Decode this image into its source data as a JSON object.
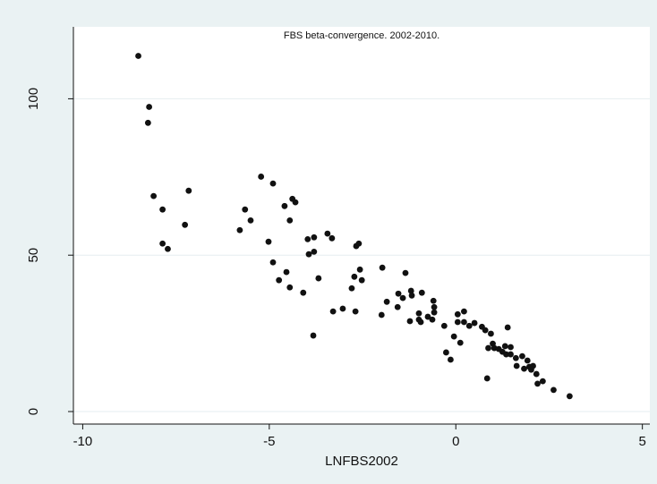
{
  "chart_data": {
    "type": "scatter",
    "title": "FBS beta-convergence. 2002-2010.",
    "x_label": "LNFBS2002",
    "color": "#111111",
    "grid": true,
    "xlim": [
      -10.25,
      5.2
    ],
    "ylim": [
      -4,
      123
    ],
    "xticks": [
      -10,
      -5,
      0,
      5
    ],
    "yticks": [
      0,
      50,
      100
    ],
    "x": [
      -8.51,
      -8.22,
      -8.25,
      -8.1,
      -7.86,
      -7.86,
      -7.72,
      -7.16,
      -7.26,
      -5.79,
      -5.65,
      -5.5,
      -5.22,
      -4.9,
      -5.02,
      -4.9,
      -4.74,
      -4.59,
      -4.54,
      -4.45,
      -4.45,
      -4.38,
      -4.3,
      -4.09,
      -3.97,
      -3.94,
      -3.8,
      -3.8,
      -3.82,
      -3.68,
      -3.44,
      -3.32,
      -3.29,
      -3.03,
      -2.79,
      -2.72,
      -2.67,
      -2.6,
      -2.69,
      -2.57,
      -2.52,
      -1.97,
      -1.99,
      -1.85,
      -1.54,
      -1.56,
      -1.42,
      -1.35,
      -1.23,
      -1.2,
      -1.18,
      -0.99,
      -0.99,
      -0.94,
      -0.91,
      -0.75,
      -0.63,
      -0.6,
      -0.58,
      -0.58,
      -0.31,
      -0.26,
      -0.14,
      -0.05,
      0.05,
      0.05,
      0.12,
      0.22,
      0.22,
      0.36,
      0.5,
      0.7,
      0.79,
      0.84,
      0.94,
      0.87,
      0.99,
      1.03,
      1.15,
      1.25,
      1.32,
      1.39,
      1.35,
      1.47,
      1.47,
      1.61,
      1.63,
      1.78,
      1.83,
      1.92,
      1.97,
      2.07,
      2.02,
      2.16,
      2.19,
      2.33,
      2.62,
      3.05
    ],
    "values": [
      113.7,
      97.4,
      92.3,
      68.9,
      64.6,
      53.7,
      52,
      70.6,
      59.7,
      58,
      64.6,
      61.1,
      75.1,
      72.9,
      54.3,
      47.7,
      42,
      65.7,
      44.6,
      39.7,
      61.1,
      68,
      66.9,
      38,
      55.1,
      50.3,
      55.7,
      51.1,
      24.3,
      42.6,
      56.9,
      55.4,
      32,
      32.9,
      39.4,
      43.1,
      52.9,
      53.7,
      32,
      45.4,
      42,
      46,
      30.9,
      35.1,
      37.7,
      33.4,
      36.3,
      44.3,
      28.9,
      38.6,
      37.1,
      31.4,
      29.4,
      28.6,
      38,
      30.3,
      29.4,
      35.4,
      33.4,
      31.7,
      27.4,
      18.9,
      16.6,
      24,
      31.1,
      28.6,
      22,
      32,
      28.6,
      27.4,
      28.3,
      27.1,
      26,
      10.6,
      24.9,
      20.3,
      21.7,
      20.3,
      20,
      19.1,
      20.9,
      26.9,
      18.3,
      20.6,
      18.3,
      17.1,
      14.6,
      17.7,
      13.7,
      16.3,
      14.3,
      14.6,
      13.4,
      12,
      8.9,
      9.7,
      6.9,
      4.9
    ]
  }
}
